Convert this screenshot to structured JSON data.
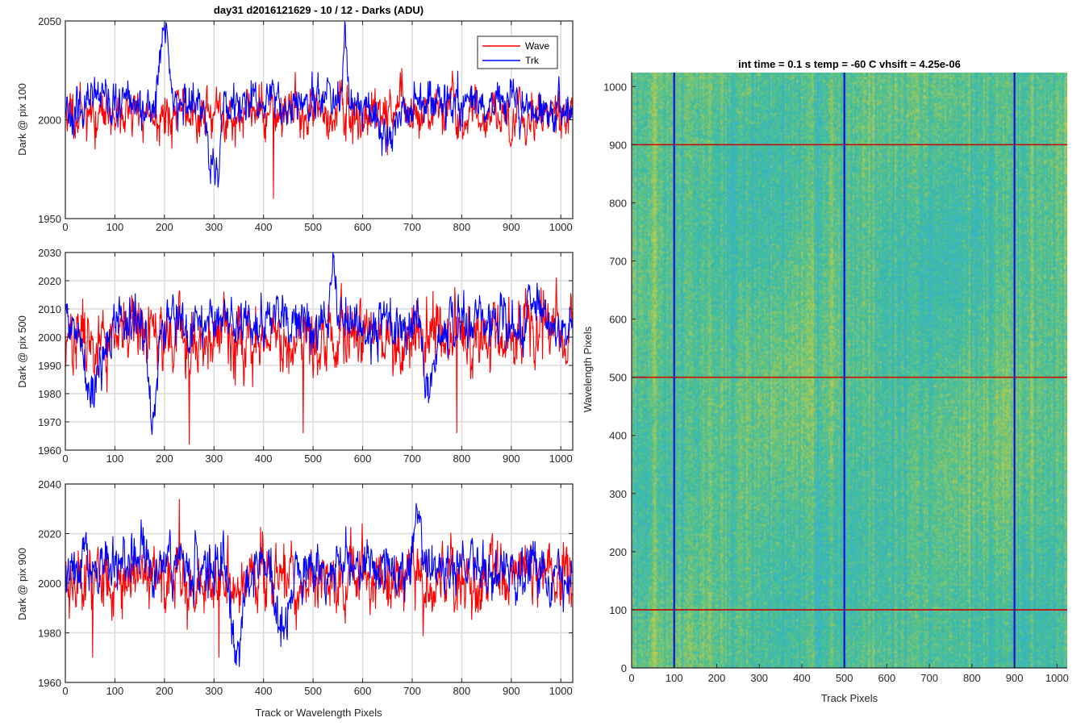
{
  "chart_data": [
    {
      "type": "line",
      "title": "day31 d2016121629 - 10 / 12 - Darks (ADU)",
      "xlabel": "",
      "ylabel": "Dark @ pix 100",
      "xlim": [
        0,
        1024
      ],
      "ylim": [
        1950,
        2050
      ],
      "yticks": [
        1950,
        2000,
        2050
      ],
      "xticks": [
        0,
        100,
        200,
        300,
        400,
        500,
        600,
        700,
        800,
        900,
        1000
      ],
      "grid": "x",
      "legend": "top-right",
      "series": [
        {
          "name": "Wave",
          "color": "#ff0000",
          "mean": 2003,
          "noise": 7,
          "seed": 11,
          "features": [
            [
              60,
              1985,
              0
            ],
            [
              420,
              1960,
              0
            ],
            [
              650,
              1982,
              0
            ]
          ]
        },
        {
          "name": "Trk",
          "color": "#0000ff",
          "mean": 2007,
          "noise": 6,
          "seed": 23,
          "features": [
            [
              200,
              2045,
              12
            ],
            [
              300,
              1972,
              14
            ],
            [
              565,
              2040,
              6
            ],
            [
              640,
              1993,
              25
            ],
            [
              905,
              2018,
              10
            ]
          ]
        }
      ]
    },
    {
      "type": "line",
      "title": "",
      "xlabel": "",
      "ylabel": "Dark @ pix 500",
      "xlim": [
        0,
        1024
      ],
      "ylim": [
        1960,
        2030
      ],
      "yticks": [
        1960,
        1970,
        1980,
        1990,
        2000,
        2010,
        2020,
        2030
      ],
      "xticks": [
        0,
        100,
        200,
        300,
        400,
        500,
        600,
        700,
        800,
        900,
        1000
      ],
      "grid": "both",
      "legend": "none",
      "series": [
        {
          "name": "Wave",
          "color": "#ff0000",
          "mean": 2000,
          "noise": 7,
          "seed": 37,
          "features": [
            [
              250,
              1962,
              0
            ],
            [
              480,
              1966,
              0
            ],
            [
              790,
              1966,
              0
            ]
          ]
        },
        {
          "name": "Trk",
          "color": "#0000ff",
          "mean": 2005,
          "noise": 5,
          "seed": 41,
          "features": [
            [
              60,
              1985,
              25
            ],
            [
              175,
              1972,
              12
            ],
            [
              735,
              1975,
              12
            ],
            [
              540,
              2025,
              6
            ]
          ]
        }
      ]
    },
    {
      "type": "line",
      "title": "",
      "xlabel": "Track or Wavelength Pixels",
      "ylabel": "Dark @ pix 900",
      "xlim": [
        0,
        1024
      ],
      "ylim": [
        1960,
        2040
      ],
      "yticks": [
        1960,
        1980,
        2000,
        2020,
        2040
      ],
      "xticks": [
        0,
        100,
        200,
        300,
        400,
        500,
        600,
        700,
        800,
        900,
        1000
      ],
      "grid": "both",
      "legend": "none",
      "series": [
        {
          "name": "Wave",
          "color": "#ff0000",
          "mean": 2002,
          "noise": 8,
          "seed": 53,
          "features": [
            [
              55,
              1970,
              0
            ],
            [
              310,
              1970,
              0
            ],
            [
              230,
              2034,
              0
            ]
          ]
        },
        {
          "name": "Trk",
          "color": "#0000ff",
          "mean": 2006,
          "noise": 6,
          "seed": 67,
          "features": [
            [
              345,
              1972,
              14
            ],
            [
              440,
              1980,
              18
            ],
            [
              710,
              2036,
              8
            ]
          ]
        }
      ]
    },
    {
      "type": "heatmap",
      "title": "int time = 0.1 s   temp = -60 C   vhsift = 4.25e-06",
      "xlabel": "Track Pixels",
      "ylabel": "Wavelength Pixels",
      "xlim": [
        0,
        1024
      ],
      "ylim": [
        0,
        1024
      ],
      "xticks": [
        0,
        100,
        200,
        300,
        400,
        500,
        600,
        700,
        800,
        900,
        1000
      ],
      "yticks": [
        0,
        100,
        200,
        300,
        400,
        500,
        600,
        700,
        800,
        900,
        1000
      ],
      "colormap": "parula",
      "vertical_lines": {
        "positions": [
          100,
          500,
          900
        ],
        "color": "#0000cc"
      },
      "horizontal_lines": {
        "positions": [
          100,
          500,
          900
        ],
        "color": "#cc0000"
      }
    }
  ]
}
